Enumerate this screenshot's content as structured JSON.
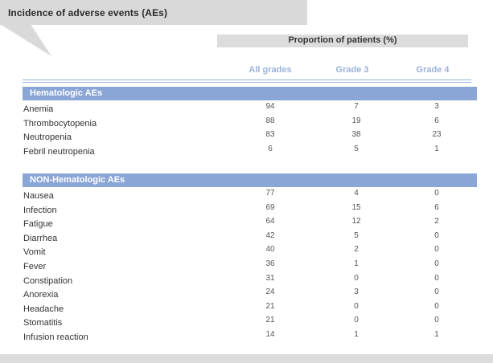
{
  "title": "Incidence of adverse events (AEs)",
  "proportion_label": "Proportion of patients (%)",
  "columns": [
    "All grades",
    "Grade 3",
    "Grade 4"
  ],
  "colors": {
    "header_gray": "#d9d9d9",
    "accent_blue": "#8aa6d6",
    "column_blue": "#9bb2d9"
  },
  "sections": [
    {
      "title": "Hematologic AEs",
      "rows": [
        {
          "name": "Anemia",
          "all": "94",
          "g3": "7",
          "g4": "3"
        },
        {
          "name": "Thrombocytopenia",
          "all": "88",
          "g3": "19",
          "g4": "6"
        },
        {
          "name": "Neutropenia",
          "all": "83",
          "g3": "38",
          "g4": "23"
        },
        {
          "name": "Febril neutropenia",
          "all": "6",
          "g3": "5",
          "g4": "1"
        }
      ]
    },
    {
      "title": "NON-Hematologic AEs",
      "rows": [
        {
          "name": "Nausea",
          "all": "77",
          "g3": "4",
          "g4": "0"
        },
        {
          "name": "Infection",
          "all": "69",
          "g3": "15",
          "g4": "6"
        },
        {
          "name": "Fatigue",
          "all": "64",
          "g3": "12",
          "g4": "2"
        },
        {
          "name": "Diarrhea",
          "all": "42",
          "g3": "5",
          "g4": "0"
        },
        {
          "name": "Vomit",
          "all": "40",
          "g3": "2",
          "g4": "0"
        },
        {
          "name": "Fever",
          "all": "36",
          "g3": "1",
          "g4": "0"
        },
        {
          "name": "Constipation",
          "all": "31",
          "g3": "0",
          "g4": "0"
        },
        {
          "name": "Anorexia",
          "all": "24",
          "g3": "3",
          "g4": "0"
        },
        {
          "name": "Headache",
          "all": "21",
          "g3": "0",
          "g4": "0"
        },
        {
          "name": "Stomatitis",
          "all": "21",
          "g3": "0",
          "g4": "0"
        },
        {
          "name": "Infusion reaction",
          "all": "14",
          "g3": "1",
          "g4": "1"
        }
      ]
    }
  ]
}
